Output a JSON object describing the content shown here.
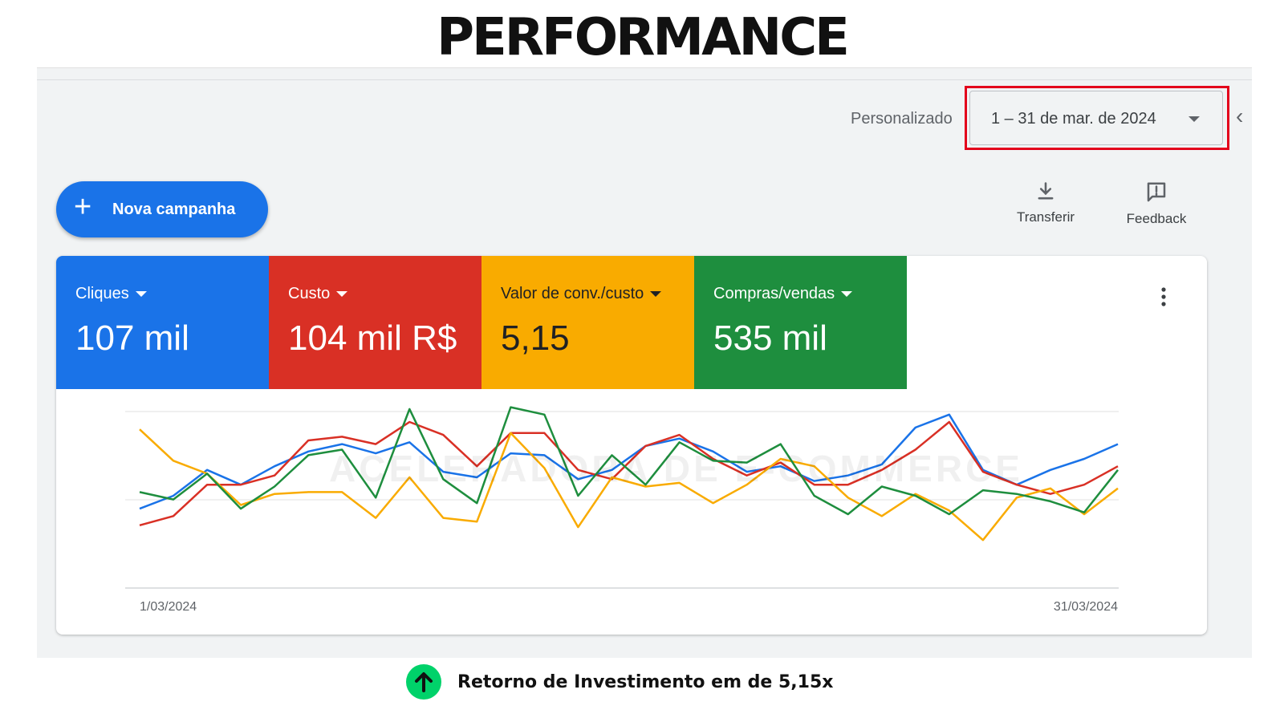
{
  "page_title": "PERFORMANCE",
  "date_filter": {
    "label": "Personalizado",
    "value": "1 – 31 de mar. de 2024"
  },
  "toolbar": {
    "new_campaign_label": "Nova campanha",
    "download_label": "Transferir",
    "feedback_label": "Feedback"
  },
  "metrics": [
    {
      "label": "Cliques",
      "value": "107 mil",
      "color": "#1a73e8"
    },
    {
      "label": "Custo",
      "value": "104 mil R$",
      "color": "#d93025"
    },
    {
      "label": "Valor de conv./custo",
      "value": "5,15",
      "color": "#f9ab00"
    },
    {
      "label": "Compras/vendas",
      "value": "535 mil",
      "color": "#1e8e3e"
    }
  ],
  "watermark": "ACELERADORA DE E-COMMERCE",
  "chart_data": {
    "type": "line",
    "x_start_label": "1/03/2024",
    "x_end_label": "31/03/2024",
    "ylim": [
      0,
      10
    ],
    "grid": true,
    "series": [
      {
        "color": "#1a73e8",
        "values": [
          4.3,
          5.0,
          6.4,
          5.6,
          6.6,
          7.4,
          7.8,
          7.3,
          7.9,
          6.3,
          6.0,
          7.3,
          7.2,
          5.9,
          6.4,
          7.7,
          8.1,
          7.4,
          6.3,
          6.6,
          5.8,
          6.1,
          6.7,
          8.7,
          9.4,
          6.4,
          5.6,
          6.4,
          7.0,
          7.8
        ]
      },
      {
        "color": "#d93025",
        "values": [
          3.4,
          3.9,
          5.6,
          5.6,
          6.1,
          8.0,
          8.2,
          7.8,
          9.0,
          8.3,
          6.6,
          8.4,
          8.4,
          6.4,
          5.9,
          7.7,
          8.3,
          7.0,
          6.1,
          6.8,
          5.6,
          5.6,
          6.4,
          7.5,
          9.0,
          6.3,
          5.6,
          5.1,
          5.6,
          6.6
        ]
      },
      {
        "color": "#f9ab00",
        "values": [
          8.6,
          6.9,
          6.2,
          4.5,
          5.1,
          5.2,
          5.2,
          3.8,
          6.0,
          3.8,
          3.6,
          8.4,
          6.5,
          3.3,
          6.0,
          5.5,
          5.7,
          4.6,
          5.6,
          7.0,
          6.6,
          4.9,
          3.9,
          5.1,
          4.2,
          2.6,
          4.9,
          5.4,
          4.0,
          5.4
        ]
      },
      {
        "color": "#1e8e3e",
        "values": [
          5.2,
          4.8,
          6.2,
          4.3,
          5.5,
          7.2,
          7.5,
          4.9,
          9.7,
          5.9,
          4.6,
          9.8,
          9.4,
          5.0,
          7.2,
          5.6,
          7.9,
          6.9,
          6.8,
          7.8,
          5.0,
          4.0,
          5.5,
          5.0,
          4.0,
          5.3,
          5.1,
          4.7,
          4.1,
          6.4
        ]
      }
    ]
  },
  "roi_text": "Retorno de Investimento em de 5,15x"
}
